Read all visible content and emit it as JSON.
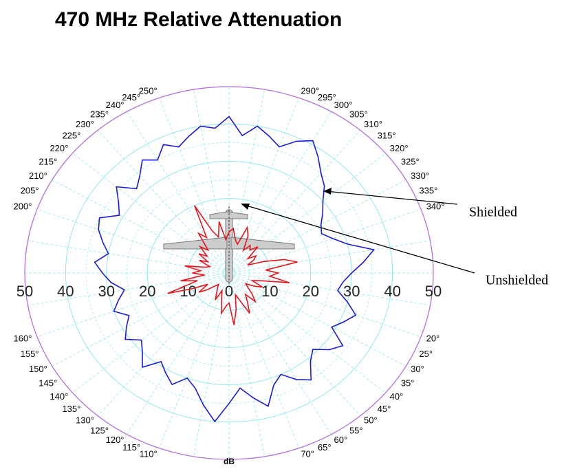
{
  "chart_data": {
    "type": "polar",
    "title": "470 MHz Relative Attenuation",
    "axis_label": "dB",
    "x": [
      0,
      5,
      10,
      15,
      20,
      25,
      30,
      35,
      40,
      45,
      50,
      55,
      60,
      65,
      70,
      75,
      80,
      85,
      90,
      95,
      100,
      105,
      110,
      115,
      120,
      125,
      130,
      135,
      140,
      145,
      150,
      155,
      160,
      165,
      170,
      175,
      180,
      185,
      190,
      195,
      200,
      205,
      210,
      215,
      220,
      225,
      230,
      235,
      240,
      245,
      250,
      255,
      260,
      265,
      270,
      275,
      280,
      285,
      290,
      295,
      300,
      305,
      310,
      315,
      320,
      325,
      330,
      335,
      340,
      345,
      350,
      355
    ],
    "series": [
      {
        "name": "Shielded",
        "color": "#1a1adc",
        "values": [
          30,
          28,
          27,
          30,
          33,
          31,
          29,
          34,
          32,
          29,
          31,
          35,
          33,
          30,
          32,
          37,
          34,
          31,
          35,
          40,
          36,
          32,
          30,
          33,
          31,
          29,
          33,
          30,
          28,
          31,
          29,
          27,
          30,
          28,
          26,
          29,
          31,
          33,
          30,
          32,
          34,
          35,
          31,
          33,
          36,
          32,
          34,
          37,
          35,
          38,
          36,
          38,
          40,
          39,
          42,
          37,
          40,
          38,
          36,
          39,
          41,
          38,
          35,
          33,
          30,
          28,
          26,
          25,
          27,
          30,
          36,
          33
        ]
      },
      {
        "name": "Unshielded",
        "color": "#e8141a",
        "values": [
          12,
          10,
          15,
          8,
          6,
          9,
          7,
          5,
          6,
          8,
          10,
          7,
          9,
          12,
          8,
          6,
          10,
          14,
          8,
          9,
          11,
          7,
          5,
          8,
          6,
          5,
          4,
          5,
          7,
          9,
          6,
          10,
          16,
          8,
          12,
          6,
          9,
          7,
          11,
          6,
          5,
          8,
          6,
          9,
          7,
          10,
          8,
          13,
          11,
          20,
          12,
          10,
          14,
          9,
          11,
          12,
          9,
          8,
          13,
          11,
          7,
          9,
          8,
          10,
          6,
          8,
          7,
          5,
          9,
          14,
          17,
          9
        ]
      }
    ],
    "rlim": [
      0,
      50
    ],
    "rticks": [
      0,
      10,
      20,
      30,
      40,
      50
    ],
    "angle_ticks": [
      {
        "value": 20,
        "label": "20°"
      },
      {
        "value": 25,
        "label": "25°"
      },
      {
        "value": 30,
        "label": "30°"
      },
      {
        "value": 35,
        "label": "35°"
      },
      {
        "value": 40,
        "label": "40°"
      },
      {
        "value": 45,
        "label": "45°"
      },
      {
        "value": 50,
        "label": "50°"
      },
      {
        "value": 55,
        "label": "55°"
      },
      {
        "value": 60,
        "label": "60°"
      },
      {
        "value": 65,
        "label": "65°"
      },
      {
        "value": 70,
        "label": "70°"
      },
      {
        "value": 110,
        "label": "110°"
      },
      {
        "value": 115,
        "label": "115°"
      },
      {
        "value": 120,
        "label": "120°"
      },
      {
        "value": 125,
        "label": "125°"
      },
      {
        "value": 130,
        "label": "130°"
      },
      {
        "value": 135,
        "label": "135°"
      },
      {
        "value": 140,
        "label": "140°"
      },
      {
        "value": 145,
        "label": "145°"
      },
      {
        "value": 150,
        "label": "150°"
      },
      {
        "value": 155,
        "label": "155°"
      },
      {
        "value": 160,
        "label": "160°"
      },
      {
        "value": 200,
        "label": "200°"
      },
      {
        "value": 205,
        "label": "205°"
      },
      {
        "value": 210,
        "label": "210°"
      },
      {
        "value": 215,
        "label": "215°"
      },
      {
        "value": 220,
        "label": "220°"
      },
      {
        "value": 225,
        "label": "225°"
      },
      {
        "value": 230,
        "label": "230°"
      },
      {
        "value": 235,
        "label": "235°"
      },
      {
        "value": 240,
        "label": "240°"
      },
      {
        "value": 245,
        "label": "245°"
      },
      {
        "value": 250,
        "label": "250°"
      },
      {
        "value": 290,
        "label": "290°"
      },
      {
        "value": 295,
        "label": "295°"
      },
      {
        "value": 300,
        "label": "300°"
      },
      {
        "value": 305,
        "label": "305°"
      },
      {
        "value": 310,
        "label": "310°"
      },
      {
        "value": 315,
        "label": "315°"
      },
      {
        "value": 320,
        "label": "320°"
      },
      {
        "value": 325,
        "label": "325°"
      },
      {
        "value": 330,
        "label": "330°"
      },
      {
        "value": 335,
        "label": "335°"
      },
      {
        "value": 340,
        "label": "340°"
      }
    ],
    "grid": true,
    "grid_color": "#8ee8ee",
    "outer_color": "#b070e0",
    "annotations": [
      "Shielded",
      "Unshielded"
    ]
  }
}
